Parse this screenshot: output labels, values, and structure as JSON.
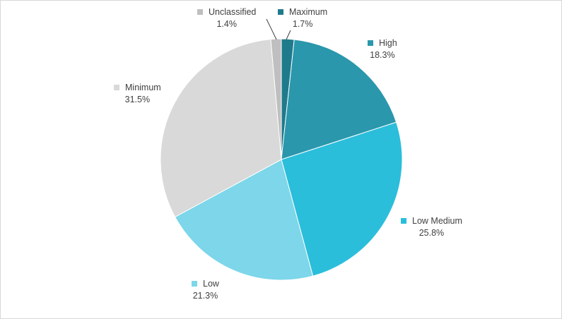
{
  "chart_data": {
    "type": "pie",
    "title": "",
    "start_angle_deg": 0,
    "direction": "clockwise",
    "slices": [
      {
        "label": "Maximum",
        "value": 1.7,
        "value_label": "1.7%",
        "color": "#1f7b8c"
      },
      {
        "label": "High",
        "value": 18.3,
        "value_label": "18.3%",
        "color": "#2a97ac"
      },
      {
        "label": "Low Medium",
        "value": 25.8,
        "value_label": "25.8%",
        "color": "#2abedb"
      },
      {
        "label": "Low",
        "value": 21.3,
        "value_label": "21.3%",
        "color": "#7dd6e9"
      },
      {
        "label": "Minimum",
        "value": 31.5,
        "value_label": "31.5%",
        "color": "#d9d9d9"
      },
      {
        "label": "Unclassified",
        "value": 1.4,
        "value_label": "1.4%",
        "color": "#bfbfbf"
      }
    ],
    "legend": "none",
    "data_labels": "outside-with-key"
  }
}
